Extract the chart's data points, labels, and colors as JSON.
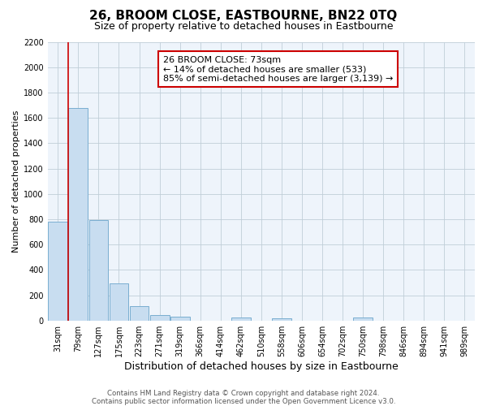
{
  "title": "26, BROOM CLOSE, EASTBOURNE, BN22 0TQ",
  "subtitle": "Size of property relative to detached houses in Eastbourne",
  "xlabel": "Distribution of detached houses by size in Eastbourne",
  "ylabel": "Number of detached properties",
  "bin_labels": [
    "31sqm",
    "79sqm",
    "127sqm",
    "175sqm",
    "223sqm",
    "271sqm",
    "319sqm",
    "366sqm",
    "414sqm",
    "462sqm",
    "510sqm",
    "558sqm",
    "606sqm",
    "654sqm",
    "702sqm",
    "750sqm",
    "798sqm",
    "846sqm",
    "894sqm",
    "941sqm",
    "989sqm"
  ],
  "bar_heights": [
    780,
    1680,
    790,
    295,
    115,
    40,
    30,
    0,
    0,
    25,
    0,
    20,
    0,
    0,
    0,
    25,
    0,
    0,
    0,
    0,
    0
  ],
  "bar_color": "#c8ddf0",
  "bar_edge_color": "#7aaed0",
  "ylim": [
    0,
    2200
  ],
  "yticks": [
    0,
    200,
    400,
    600,
    800,
    1000,
    1200,
    1400,
    1600,
    1800,
    2000,
    2200
  ],
  "red_line_x": 0.525,
  "annotation_text_line1": "26 BROOM CLOSE: 73sqm",
  "annotation_text_line2": "← 14% of detached houses are smaller (533)",
  "annotation_text_line3": "85% of semi-detached houses are larger (3,139) →",
  "footer_line1": "Contains HM Land Registry data © Crown copyright and database right 2024.",
  "footer_line2": "Contains public sector information licensed under the Open Government Licence v3.0.",
  "background_color": "#ffffff",
  "plot_bg_color": "#eef4fb",
  "grid_color": "#c0ced8",
  "title_fontsize": 11,
  "subtitle_fontsize": 9,
  "tick_fontsize": 7,
  "ylabel_fontsize": 8,
  "xlabel_fontsize": 9
}
